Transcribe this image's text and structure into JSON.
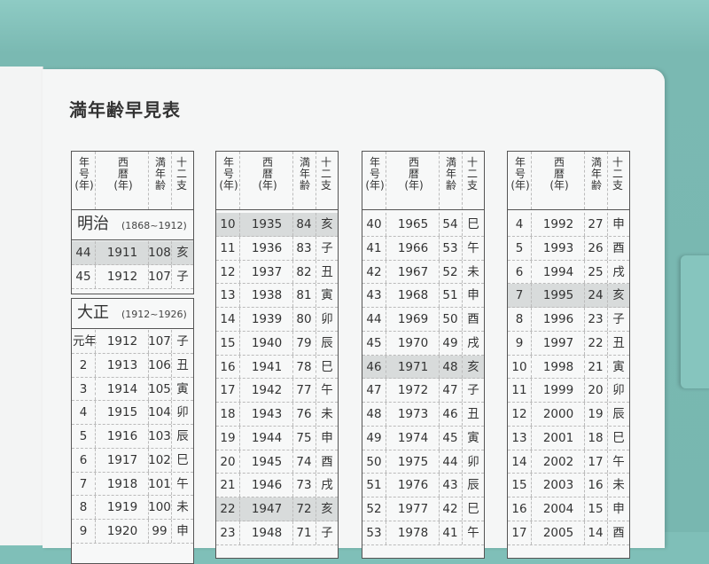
{
  "title": "満年齢早見表",
  "header": {
    "era_year": "年号(年)",
    "western": "西暦(年)",
    "age": "満年齢",
    "zodiac": "十二支"
  },
  "colors": {
    "shade": "#d8dbdb",
    "cover": "#7fbfb8"
  },
  "tables": [
    {
      "sections": [
        {
          "era": "明治",
          "range": "(1868~1912)",
          "rows": [
            [
              "44",
              "1911",
              "108",
              "亥",
              true
            ],
            [
              "45",
              "1912",
              "107",
              "子",
              false
            ]
          ]
        },
        {
          "era": "大正",
          "range": "(1912~1926)",
          "rows": [
            [
              "元年",
              "1912",
              "107",
              "子",
              false
            ],
            [
              "2",
              "1913",
              "106",
              "丑",
              false
            ],
            [
              "3",
              "1914",
              "105",
              "寅",
              false
            ],
            [
              "4",
              "1915",
              "104",
              "卯",
              false
            ],
            [
              "5",
              "1916",
              "103",
              "辰",
              false
            ],
            [
              "6",
              "1917",
              "102",
              "巳",
              false
            ],
            [
              "7",
              "1918",
              "101",
              "午",
              false
            ],
            [
              "8",
              "1919",
              "100",
              "未",
              false
            ],
            [
              "9",
              "1920",
              "99",
              "申",
              false
            ]
          ]
        }
      ]
    },
    {
      "sections": [
        {
          "rows": [
            [
              "10",
              "1935",
              "84",
              "亥",
              true
            ],
            [
              "11",
              "1936",
              "83",
              "子",
              false
            ],
            [
              "12",
              "1937",
              "82",
              "丑",
              false
            ],
            [
              "13",
              "1938",
              "81",
              "寅",
              false
            ],
            [
              "14",
              "1939",
              "80",
              "卯",
              false
            ],
            [
              "15",
              "1940",
              "79",
              "辰",
              false
            ],
            [
              "16",
              "1941",
              "78",
              "巳",
              false
            ],
            [
              "17",
              "1942",
              "77",
              "午",
              false
            ],
            [
              "18",
              "1943",
              "76",
              "未",
              false
            ],
            [
              "19",
              "1944",
              "75",
              "申",
              false
            ],
            [
              "20",
              "1945",
              "74",
              "酉",
              false
            ],
            [
              "21",
              "1946",
              "73",
              "戌",
              false
            ],
            [
              "22",
              "1947",
              "72",
              "亥",
              true
            ],
            [
              "23",
              "1948",
              "71",
              "子",
              false
            ]
          ]
        }
      ]
    },
    {
      "sections": [
        {
          "rows": [
            [
              "40",
              "1965",
              "54",
              "巳",
              false
            ],
            [
              "41",
              "1966",
              "53",
              "午",
              false
            ],
            [
              "42",
              "1967",
              "52",
              "未",
              false
            ],
            [
              "43",
              "1968",
              "51",
              "申",
              false
            ],
            [
              "44",
              "1969",
              "50",
              "酉",
              false
            ],
            [
              "45",
              "1970",
              "49",
              "戌",
              false
            ],
            [
              "46",
              "1971",
              "48",
              "亥",
              true
            ],
            [
              "47",
              "1972",
              "47",
              "子",
              false
            ],
            [
              "48",
              "1973",
              "46",
              "丑",
              false
            ],
            [
              "49",
              "1974",
              "45",
              "寅",
              false
            ],
            [
              "50",
              "1975",
              "44",
              "卯",
              false
            ],
            [
              "51",
              "1976",
              "43",
              "辰",
              false
            ],
            [
              "52",
              "1977",
              "42",
              "巳",
              false
            ],
            [
              "53",
              "1978",
              "41",
              "午",
              false
            ]
          ]
        }
      ]
    },
    {
      "sections": [
        {
          "rows": [
            [
              "4",
              "1992",
              "27",
              "申",
              false
            ],
            [
              "5",
              "1993",
              "26",
              "酉",
              false
            ],
            [
              "6",
              "1994",
              "25",
              "戌",
              false
            ],
            [
              "7",
              "1995",
              "24",
              "亥",
              true
            ],
            [
              "8",
              "1996",
              "23",
              "子",
              false
            ],
            [
              "9",
              "1997",
              "22",
              "丑",
              false
            ],
            [
              "10",
              "1998",
              "21",
              "寅",
              false
            ],
            [
              "11",
              "1999",
              "20",
              "卯",
              false
            ],
            [
              "12",
              "2000",
              "19",
              "辰",
              false
            ],
            [
              "13",
              "2001",
              "18",
              "巳",
              false
            ],
            [
              "14",
              "2002",
              "17",
              "午",
              false
            ],
            [
              "15",
              "2003",
              "16",
              "未",
              false
            ],
            [
              "16",
              "2004",
              "15",
              "申",
              false
            ],
            [
              "17",
              "2005",
              "14",
              "酉",
              false
            ]
          ]
        }
      ]
    }
  ]
}
